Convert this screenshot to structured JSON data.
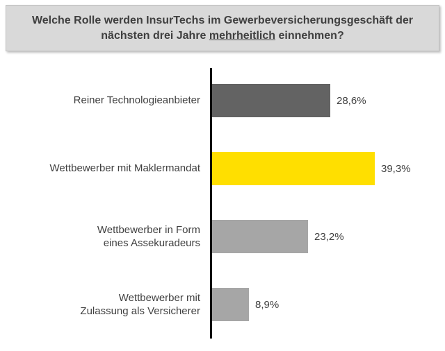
{
  "title": {
    "part1": "Welche Rolle werden InsurTechs im Gewerbeversicherungsgeschäft der nächsten drei Jahre ",
    "underlined": "mehrheitlich",
    "part2": " einnehmen?"
  },
  "labels": [
    {
      "line1": "Reiner Technologieanbieter",
      "line2": ""
    },
    {
      "line1": "Wettbewerber mit Maklermandat",
      "line2": ""
    },
    {
      "line1": "Wettbewerber in Form",
      "line2": "eines Assekuradeurs"
    },
    {
      "line1": "Wettbewerber mit",
      "line2": "Zulassung als Versicherer"
    }
  ],
  "chart_data": {
    "type": "bar",
    "orientation": "horizontal",
    "title": "Welche Rolle werden InsurTechs im Gewerbeversicherungsgeschäft der nächsten drei Jahre mehrheitlich einnehmen?",
    "categories": [
      "Reiner Technologieanbieter",
      "Wettbewerber mit Maklermandat",
      "Wettbewerber in Form eines Assekuradeurs",
      "Wettbewerber mit Zulassung als Versicherer"
    ],
    "values": [
      28.6,
      39.3,
      23.2,
      8.9
    ],
    "value_labels": [
      "28,6%",
      "39,3%",
      "23,2%",
      "8,9%"
    ],
    "colors": [
      "#636363",
      "#ffdf00",
      "#a6a6a6",
      "#a6a6a6"
    ],
    "unit": "%",
    "xlim": [
      0,
      45
    ],
    "grid": false,
    "legend": false,
    "title_box_bg": "#d9d9d9",
    "axis_color": "#000000",
    "text_color": "#3f3f3f"
  }
}
